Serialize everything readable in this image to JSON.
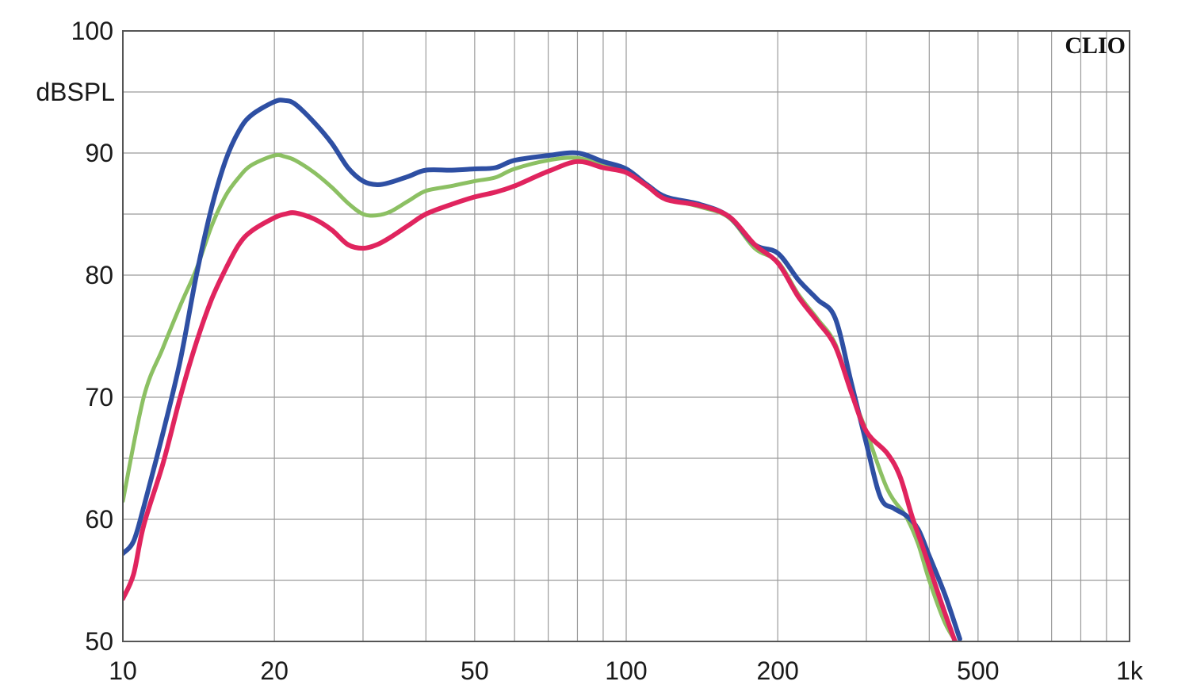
{
  "chart_data": {
    "type": "line",
    "x_scale": "log",
    "xlim": [
      10,
      1000
    ],
    "ylim": [
      50,
      100
    ],
    "grid": true,
    "ylabel": "dBSPL",
    "brand": "CLIO",
    "x_ticks": [
      {
        "value": 10,
        "label": "10"
      },
      {
        "value": 20,
        "label": "20"
      },
      {
        "value": 50,
        "label": "50"
      },
      {
        "value": 100,
        "label": "100"
      },
      {
        "value": 200,
        "label": "200"
      },
      {
        "value": 500,
        "label": "500"
      },
      {
        "value": 1000,
        "label": "1k"
      }
    ],
    "y_ticks": [
      {
        "value": 50,
        "label": "50"
      },
      {
        "value": 60,
        "label": "60"
      },
      {
        "value": 70,
        "label": "70"
      },
      {
        "value": 80,
        "label": "80"
      },
      {
        "value": 90,
        "label": "90"
      },
      {
        "value": 100,
        "label": "100"
      }
    ],
    "series": [
      {
        "color": "#8cc063",
        "x": [
          10,
          11,
          12,
          13,
          14,
          15,
          16,
          17,
          18,
          20,
          21,
          22,
          24,
          26,
          28,
          30,
          32,
          34,
          37,
          40,
          45,
          50,
          55,
          60,
          70,
          80,
          90,
          100,
          110,
          120,
          140,
          160,
          180,
          200,
          220,
          240,
          260,
          280,
          300,
          330,
          360,
          380,
          400,
          430,
          460
        ],
        "y": [
          61.5,
          70,
          74,
          77.5,
          80.5,
          84,
          86.5,
          88,
          89,
          89.8,
          89.7,
          89.4,
          88.4,
          87.2,
          85.9,
          85,
          84.9,
          85.2,
          86.1,
          86.9,
          87.3,
          87.7,
          88,
          88.7,
          89.4,
          89.6,
          89,
          88.6,
          87.3,
          86.3,
          85.6,
          84.7,
          82.2,
          81.1,
          78.4,
          76.4,
          74.4,
          70.4,
          67.2,
          62.5,
          60.2,
          58,
          55,
          51.5,
          49.5
        ]
      },
      {
        "color": "#2e4fa3",
        "x": [
          10,
          10.5,
          11,
          12,
          13,
          14,
          15,
          16,
          17,
          18,
          20,
          21,
          22,
          24,
          26,
          28,
          30,
          32,
          34,
          37,
          40,
          45,
          50,
          55,
          60,
          70,
          80,
          90,
          100,
          110,
          120,
          140,
          160,
          180,
          200,
          220,
          240,
          260,
          280,
          300,
          320,
          340,
          360,
          380,
          400,
          430,
          460
        ],
        "y": [
          57.2,
          58.2,
          61,
          67,
          73,
          80,
          85.5,
          89.4,
          91.8,
          93.1,
          94.2,
          94.3,
          94,
          92.5,
          90.8,
          88.8,
          87.7,
          87.4,
          87.6,
          88.1,
          88.6,
          88.6,
          88.7,
          88.8,
          89.4,
          89.8,
          90,
          89.3,
          88.7,
          87.4,
          86.4,
          85.8,
          84.8,
          82.5,
          81.8,
          79.6,
          78,
          76.5,
          71.2,
          66.2,
          61.8,
          60.9,
          60.3,
          59.2,
          57,
          53.8,
          50.2
        ]
      },
      {
        "color": "#e0245e",
        "x": [
          10,
          10.5,
          11,
          12,
          13,
          14,
          15,
          16,
          17,
          18,
          20,
          21,
          22,
          24,
          26,
          28,
          30,
          32,
          34,
          37,
          40,
          45,
          50,
          55,
          60,
          70,
          80,
          90,
          100,
          110,
          120,
          140,
          160,
          180,
          200,
          220,
          240,
          260,
          280,
          300,
          330,
          350,
          370,
          390,
          420,
          450
        ],
        "y": [
          53.5,
          55.5,
          59.5,
          64.5,
          70,
          74.5,
          78,
          80.5,
          82.5,
          83.6,
          84.7,
          85,
          85.1,
          84.6,
          83.7,
          82.5,
          82.2,
          82.5,
          83.1,
          84.1,
          85,
          85.8,
          86.4,
          86.8,
          87.3,
          88.5,
          89.3,
          88.8,
          88.4,
          87.3,
          86.2,
          85.7,
          84.8,
          82.5,
          81,
          78.2,
          76.2,
          74.2,
          70.4,
          67.2,
          65.4,
          63.5,
          60.2,
          57.5,
          53.5,
          50
        ]
      }
    ]
  }
}
